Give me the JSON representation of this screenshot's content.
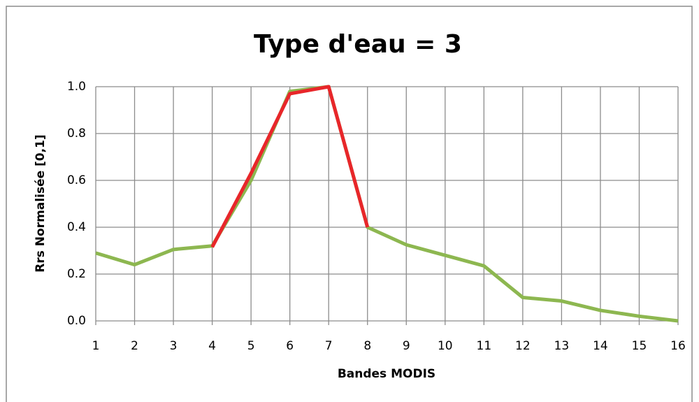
{
  "chart_data": {
    "type": "line",
    "title": "Type d'eau = 3",
    "x_label": "Bandes MODIS",
    "y_label": "Rrs Normalisée [0,1]",
    "x": [
      1,
      2,
      3,
      4,
      5,
      6,
      7,
      8,
      9,
      10,
      11,
      12,
      13,
      14,
      15,
      16
    ],
    "series": [
      {
        "color": "#8db750",
        "values": [
          0.29,
          0.24,
          0.305,
          0.32,
          0.6,
          0.98,
          1.0,
          0.4,
          0.325,
          0.28,
          0.235,
          0.1,
          0.085,
          0.045,
          0.02,
          0.0
        ]
      },
      {
        "color": "#e8262a",
        "values": [
          null,
          null,
          null,
          0.315,
          0.63,
          0.97,
          1.0,
          0.4,
          null,
          null,
          null,
          null,
          null,
          null,
          null,
          null
        ]
      }
    ],
    "xlim": [
      1,
      16
    ],
    "xticks": [
      1,
      2,
      3,
      4,
      5,
      6,
      7,
      8,
      9,
      10,
      11,
      12,
      13,
      14,
      15,
      16
    ],
    "ylim": [
      0,
      1
    ],
    "yticks": [
      {
        "value": 0,
        "label": "0.0"
      },
      {
        "value": 0.2,
        "label": "0.2"
      },
      {
        "value": 0.4,
        "label": "0.4"
      },
      {
        "value": 0.6,
        "label": "0.6"
      },
      {
        "value": 0.8,
        "label": "0.8"
      },
      {
        "value": 1,
        "label": "1.0"
      }
    ],
    "grid": true
  }
}
